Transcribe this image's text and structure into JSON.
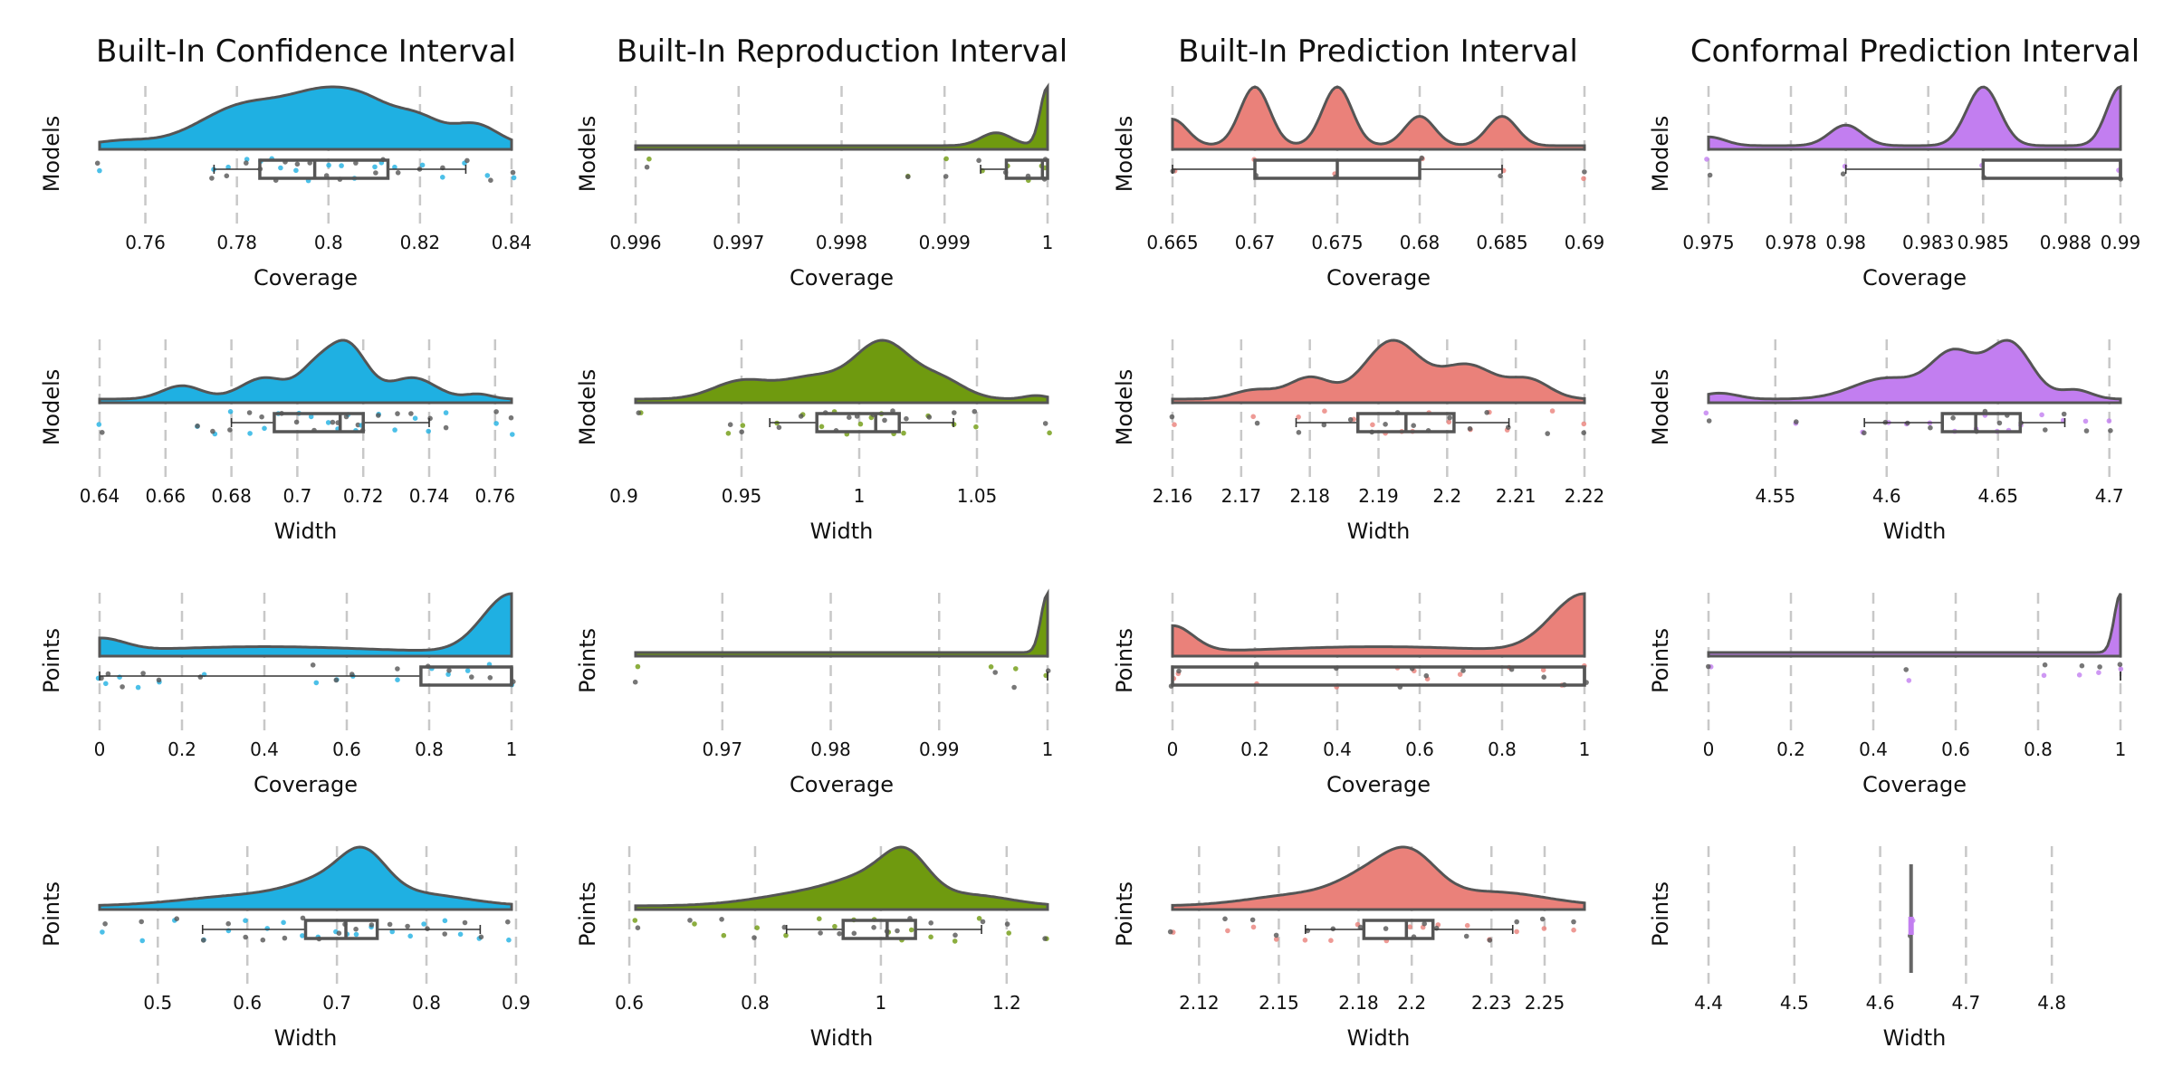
{
  "column_titles": [
    "Built-In Confidence Interval",
    "Built-In Reproduction Interval",
    "Built-In Prediction Interval",
    "Conformal Prediction Interval"
  ],
  "colors": {
    "confidence": "#1fb0e2",
    "reproduction": "#6f9a0f",
    "prediction": "#ea817a",
    "conformal": "#c27ef0",
    "outline": "#555555",
    "grid": "#c8c8c8"
  },
  "chart_data": [
    {
      "type": "raincloud",
      "row": 0,
      "col": 0,
      "xlabel": "Coverage",
      "ylabel": "Models",
      "color": "confidence",
      "xlim": [
        0.75,
        0.84
      ],
      "ticks": [
        0.76,
        0.78,
        0.8,
        0.82,
        0.84
      ],
      "tick_labels": [
        "0.76",
        "0.78",
        "0.8",
        "0.82",
        "0.84"
      ],
      "density_peaks": [
        [
          0.755,
          0.1,
          0.006
        ],
        [
          0.782,
          0.85,
          0.01
        ],
        [
          0.8,
          0.95,
          0.008
        ],
        [
          0.81,
          0.5,
          0.006
        ],
        [
          0.82,
          0.5,
          0.005
        ],
        [
          0.832,
          0.45,
          0.005
        ]
      ],
      "box": {
        "q1": 0.785,
        "median": 0.797,
        "q3": 0.813,
        "whisker_low": 0.775,
        "whisker_high": 0.83
      },
      "points": [
        0.75,
        0.775,
        0.778,
        0.782,
        0.785,
        0.788,
        0.79,
        0.793,
        0.796,
        0.8,
        0.803,
        0.806,
        0.81,
        0.812,
        0.815,
        0.82,
        0.825,
        0.83,
        0.835,
        0.84
      ]
    },
    {
      "type": "raincloud",
      "row": 0,
      "col": 1,
      "xlabel": "Coverage",
      "ylabel": "Models",
      "color": "reproduction",
      "xlim": [
        0.996,
        1.0
      ],
      "ticks": [
        0.996,
        0.997,
        0.998,
        0.999,
        1.0
      ],
      "tick_labels": [
        "0.996",
        "0.997",
        "0.998",
        "0.999",
        "1"
      ],
      "density_peaks": [
        [
          0.9995,
          0.22,
          0.00015
        ],
        [
          1.0,
          1.0,
          7e-05
        ]
      ],
      "box": {
        "q1": 0.9996,
        "median": 0.99995,
        "q3": 1.0,
        "whisker_low": 0.99935,
        "whisker_high": 1.0
      },
      "points": [
        0.99612,
        0.99865,
        0.999,
        0.99935,
        0.9996,
        0.9998,
        0.99995,
        1.0
      ]
    },
    {
      "type": "raincloud",
      "row": 0,
      "col": 2,
      "xlabel": "Coverage",
      "ylabel": "Models",
      "color": "prediction",
      "xlim": [
        0.665,
        0.69
      ],
      "ticks": [
        0.665,
        0.67,
        0.675,
        0.68,
        0.685,
        0.69
      ],
      "tick_labels": [
        "0.665",
        "0.67",
        "0.675",
        "0.68",
        "0.685",
        "0.69"
      ],
      "density_peaks": [
        [
          0.665,
          0.45,
          0.0009
        ],
        [
          0.67,
          1.0,
          0.0009
        ],
        [
          0.675,
          1.0,
          0.0009
        ],
        [
          0.68,
          0.5,
          0.0009
        ],
        [
          0.685,
          0.5,
          0.0009
        ]
      ],
      "box": {
        "q1": 0.67,
        "median": 0.675,
        "q3": 0.68,
        "whisker_low": 0.665,
        "whisker_high": 0.685
      },
      "points": [
        0.665,
        0.67,
        0.675,
        0.68,
        0.685,
        0.69
      ]
    },
    {
      "type": "raincloud",
      "row": 0,
      "col": 3,
      "xlabel": "Coverage",
      "ylabel": "Models",
      "color": "conformal",
      "xlim": [
        0.975,
        0.99
      ],
      "ticks": [
        0.975,
        0.978,
        0.98,
        0.983,
        0.985,
        0.988,
        0.99
      ],
      "tick_labels": [
        "0.975",
        "0.978",
        "0.98",
        "0.983",
        "0.985",
        "0.988",
        "0.99"
      ],
      "density_peaks": [
        [
          0.975,
          0.15,
          0.0006
        ],
        [
          0.98,
          0.35,
          0.0006
        ],
        [
          0.985,
          1.0,
          0.0006
        ],
        [
          0.99,
          1.0,
          0.0005
        ]
      ],
      "box": {
        "q1": 0.985,
        "median": 0.99,
        "q3": 0.99,
        "whisker_low": 0.98,
        "whisker_high": 0.99
      },
      "points": [
        0.975,
        0.98,
        0.985,
        0.99
      ]
    },
    {
      "type": "raincloud",
      "row": 1,
      "col": 0,
      "xlabel": "Width",
      "ylabel": "Models",
      "color": "confidence",
      "xlim": [
        0.64,
        0.765
      ],
      "ticks": [
        0.64,
        0.66,
        0.68,
        0.7,
        0.72,
        0.74,
        0.76
      ],
      "tick_labels": [
        "0.64",
        "0.66",
        "0.68",
        "0.7",
        "0.72",
        "0.74",
        "0.76"
      ],
      "density_peaks": [
        [
          0.665,
          0.22,
          0.006
        ],
        [
          0.69,
          0.35,
          0.007
        ],
        [
          0.705,
          0.4,
          0.005
        ],
        [
          0.715,
          0.9,
          0.006
        ],
        [
          0.735,
          0.35,
          0.007
        ],
        [
          0.755,
          0.08,
          0.004
        ]
      ],
      "box": {
        "q1": 0.693,
        "median": 0.713,
        "q3": 0.72,
        "whisker_low": 0.68,
        "whisker_high": 0.74
      },
      "points": [
        0.64,
        0.67,
        0.675,
        0.68,
        0.685,
        0.69,
        0.695,
        0.7,
        0.705,
        0.71,
        0.712,
        0.715,
        0.718,
        0.72,
        0.725,
        0.73,
        0.735,
        0.74,
        0.745,
        0.76,
        0.765
      ]
    },
    {
      "type": "raincloud",
      "row": 1,
      "col": 1,
      "xlabel": "Width",
      "ylabel": "Models",
      "color": "reproduction",
      "xlim": [
        0.905,
        1.08
      ],
      "ticks": [
        0.9,
        0.95,
        1.0,
        1.05
      ],
      "tick_labels": [
        "0.9",
        "0.95",
        "1",
        "1.05"
      ],
      "density_peaks": [
        [
          0.95,
          0.3,
          0.012
        ],
        [
          0.98,
          0.35,
          0.013
        ],
        [
          1.01,
          0.95,
          0.012
        ],
        [
          1.035,
          0.3,
          0.01
        ],
        [
          1.075,
          0.06,
          0.005
        ]
      ],
      "box": {
        "q1": 0.982,
        "median": 1.007,
        "q3": 1.017,
        "whisker_low": 0.962,
        "whisker_high": 1.04
      },
      "points": [
        0.907,
        0.945,
        0.95,
        0.965,
        0.975,
        0.985,
        0.99,
        0.995,
        1.0,
        1.005,
        1.01,
        1.015,
        1.02,
        1.03,
        1.04,
        1.05,
        1.08
      ]
    },
    {
      "type": "raincloud",
      "row": 1,
      "col": 2,
      "xlabel": "Width",
      "ylabel": "Models",
      "color": "prediction",
      "xlim": [
        2.16,
        2.22
      ],
      "ticks": [
        2.16,
        2.17,
        2.18,
        2.19,
        2.2,
        2.21,
        2.22
      ],
      "tick_labels": [
        "2.16",
        "2.17",
        "2.18",
        "2.19",
        "2.2",
        "2.21",
        "2.22"
      ],
      "density_peaks": [
        [
          2.172,
          0.15,
          0.003
        ],
        [
          2.18,
          0.35,
          0.003
        ],
        [
          2.192,
          0.95,
          0.004
        ],
        [
          2.203,
          0.55,
          0.004
        ],
        [
          2.212,
          0.3,
          0.003
        ]
      ],
      "box": {
        "q1": 2.187,
        "median": 2.194,
        "q3": 2.201,
        "whisker_low": 2.178,
        "whisker_high": 2.209
      },
      "points": [
        2.16,
        2.172,
        2.178,
        2.182,
        2.186,
        2.189,
        2.191,
        2.193,
        2.195,
        2.197,
        2.2,
        2.203,
        2.206,
        2.209,
        2.215,
        2.22
      ]
    },
    {
      "type": "raincloud",
      "row": 1,
      "col": 3,
      "xlabel": "Width",
      "ylabel": "Models",
      "color": "conformal",
      "xlim": [
        4.52,
        4.705
      ],
      "ticks": [
        4.55,
        4.6,
        4.65,
        4.7
      ],
      "tick_labels": [
        "4.55",
        "4.6",
        "4.65",
        "4.7"
      ],
      "density_peaks": [
        [
          4.525,
          0.1,
          0.008
        ],
        [
          4.6,
          0.35,
          0.015
        ],
        [
          4.63,
          0.75,
          0.01
        ],
        [
          4.655,
          0.95,
          0.01
        ],
        [
          4.685,
          0.15,
          0.007
        ]
      ],
      "box": {
        "q1": 4.625,
        "median": 4.64,
        "q3": 4.66,
        "whisker_low": 4.59,
        "whisker_high": 4.68
      },
      "points": [
        4.52,
        4.56,
        4.59,
        4.6,
        4.61,
        4.62,
        4.63,
        4.64,
        4.645,
        4.65,
        4.655,
        4.66,
        4.67,
        4.68,
        4.69,
        4.7
      ]
    },
    {
      "type": "raincloud",
      "row": 2,
      "col": 0,
      "xlabel": "Coverage",
      "ylabel": "Points",
      "color": "confidence",
      "xlim": [
        0.0,
        1.0
      ],
      "ticks": [
        0,
        0.2,
        0.4,
        0.6,
        0.8,
        1.0
      ],
      "tick_labels": [
        "0",
        "0.2",
        "0.4",
        "0.6",
        "0.8",
        "1"
      ],
      "density_peaks": [
        [
          0.0,
          0.22,
          0.06
        ],
        [
          0.4,
          0.1,
          0.25
        ],
        [
          1.0,
          1.0,
          0.07
        ]
      ],
      "box": {
        "q1": 0.78,
        "median": 1.0,
        "q3": 1.0,
        "whisker_low": 0.0,
        "whisker_high": 1.0
      },
      "points": [
        0.0,
        0.02,
        0.05,
        0.1,
        0.15,
        0.25,
        0.52,
        0.58,
        0.61,
        0.72,
        0.8,
        0.85,
        0.9,
        0.95,
        1.0
      ]
    },
    {
      "type": "raincloud",
      "row": 2,
      "col": 1,
      "xlabel": "Coverage",
      "ylabel": "Points",
      "color": "reproduction",
      "xlim": [
        0.962,
        1.0
      ],
      "ticks": [
        0.97,
        0.98,
        0.99,
        1.0
      ],
      "tick_labels": [
        "0.97",
        "0.98",
        "0.99",
        "1"
      ],
      "density_peaks": [
        [
          1.0,
          1.0,
          0.0006
        ]
      ],
      "box": {
        "q1": 1.0,
        "median": 1.0,
        "q3": 1.0,
        "whisker_low": 1.0,
        "whisker_high": 1.0
      },
      "points": [
        0.9622,
        0.995,
        0.997,
        1.0
      ]
    },
    {
      "type": "raincloud",
      "row": 2,
      "col": 2,
      "xlabel": "Coverage",
      "ylabel": "Points",
      "color": "prediction",
      "xlim": [
        0.0,
        1.0
      ],
      "ticks": [
        0,
        0.2,
        0.4,
        0.6,
        0.8,
        1.0
      ],
      "tick_labels": [
        "0",
        "0.2",
        "0.4",
        "0.6",
        "0.8",
        "1"
      ],
      "density_peaks": [
        [
          0.0,
          0.45,
          0.05
        ],
        [
          0.5,
          0.1,
          0.25
        ],
        [
          1.0,
          1.0,
          0.08
        ]
      ],
      "box": {
        "q1": 0.0,
        "median": 1.0,
        "q3": 1.0,
        "whisker_low": 0.0,
        "whisker_high": 1.0
      },
      "points": [
        0.0,
        0.02,
        0.2,
        0.4,
        0.55,
        0.58,
        0.62,
        0.7,
        0.82,
        0.9,
        0.95,
        1.0
      ]
    },
    {
      "type": "raincloud",
      "row": 2,
      "col": 3,
      "xlabel": "Coverage",
      "ylabel": "Points",
      "color": "conformal",
      "xlim": [
        0.0,
        1.0
      ],
      "ticks": [
        0,
        0.2,
        0.4,
        0.6,
        0.8,
        1.0
      ],
      "tick_labels": [
        "0",
        "0.2",
        "0.4",
        "0.6",
        "0.8",
        "1"
      ],
      "density_peaks": [
        [
          1.0,
          1.0,
          0.015
        ]
      ],
      "box": {
        "q1": 1.0,
        "median": 1.0,
        "q3": 1.0,
        "whisker_low": 1.0,
        "whisker_high": 1.0
      },
      "points": [
        0.0,
        0.48,
        0.82,
        0.9,
        0.95,
        1.0
      ]
    },
    {
      "type": "raincloud",
      "row": 3,
      "col": 0,
      "xlabel": "Width",
      "ylabel": "Points",
      "color": "confidence",
      "xlim": [
        0.435,
        0.895
      ],
      "ticks": [
        0.5,
        0.6,
        0.7,
        0.8,
        0.9
      ],
      "tick_labels": [
        "0.5",
        "0.6",
        "0.7",
        "0.8",
        "0.9"
      ],
      "density_peaks": [
        [
          0.6,
          0.25,
          0.07
        ],
        [
          0.7,
          0.6,
          0.045
        ],
        [
          0.73,
          0.8,
          0.025
        ],
        [
          0.8,
          0.25,
          0.05
        ]
      ],
      "box": {
        "q1": 0.665,
        "median": 0.71,
        "q3": 0.745,
        "whisker_low": 0.55,
        "whisker_high": 0.86
      },
      "points": [
        0.44,
        0.48,
        0.52,
        0.55,
        0.58,
        0.6,
        0.62,
        0.64,
        0.66,
        0.68,
        0.7,
        0.71,
        0.72,
        0.74,
        0.76,
        0.78,
        0.8,
        0.82,
        0.84,
        0.86,
        0.89
      ]
    },
    {
      "type": "raincloud",
      "row": 3,
      "col": 1,
      "xlabel": "Width",
      "ylabel": "Points",
      "color": "reproduction",
      "xlim": [
        0.61,
        1.265
      ],
      "ticks": [
        0.6,
        0.8,
        1.0,
        1.2
      ],
      "tick_labels": [
        "0.6",
        "0.8",
        "1",
        "1.2"
      ],
      "density_peaks": [
        [
          0.9,
          0.35,
          0.09
        ],
        [
          1.0,
          0.6,
          0.06
        ],
        [
          1.04,
          0.85,
          0.035
        ],
        [
          1.15,
          0.25,
          0.06
        ]
      ],
      "box": {
        "q1": 0.94,
        "median": 1.01,
        "q3": 1.055,
        "whisker_low": 0.85,
        "whisker_high": 1.16
      },
      "points": [
        0.61,
        0.7,
        0.75,
        0.8,
        0.85,
        0.9,
        0.93,
        0.96,
        0.99,
        1.01,
        1.03,
        1.05,
        1.08,
        1.12,
        1.16,
        1.2,
        1.26
      ]
    },
    {
      "type": "raincloud",
      "row": 3,
      "col": 2,
      "xlabel": "Width",
      "ylabel": "Points",
      "color": "prediction",
      "xlim": [
        2.11,
        2.265
      ],
      "ticks": [
        2.12,
        2.15,
        2.18,
        2.2,
        2.23,
        2.25
      ],
      "tick_labels": [
        "2.12",
        "2.15",
        "2.18",
        "2.2",
        "2.23",
        "2.25"
      ],
      "density_peaks": [
        [
          2.16,
          0.25,
          0.02
        ],
        [
          2.185,
          0.55,
          0.012
        ],
        [
          2.2,
          0.85,
          0.01
        ],
        [
          2.23,
          0.3,
          0.02
        ]
      ],
      "box": {
        "q1": 2.182,
        "median": 2.198,
        "q3": 2.208,
        "whisker_low": 2.16,
        "whisker_high": 2.238
      },
      "points": [
        2.11,
        2.13,
        2.14,
        2.15,
        2.16,
        2.17,
        2.18,
        2.19,
        2.2,
        2.205,
        2.21,
        2.22,
        2.23,
        2.24,
        2.25,
        2.26
      ]
    },
    {
      "type": "raincloud",
      "row": 3,
      "col": 3,
      "xlabel": "Width",
      "ylabel": "Points",
      "color": "conformal",
      "xlim": [
        4.4,
        4.88
      ],
      "ticks": [
        4.4,
        4.5,
        4.6,
        4.7,
        4.8
      ],
      "tick_labels": [
        "4.4",
        "4.5",
        "4.6",
        "4.7",
        "4.8"
      ],
      "density_peaks": [],
      "box": {
        "q1": 4.636,
        "median": 4.636,
        "q3": 4.636,
        "whisker_low": 4.636,
        "whisker_high": 4.636
      },
      "points": [
        4.636
      ]
    }
  ]
}
